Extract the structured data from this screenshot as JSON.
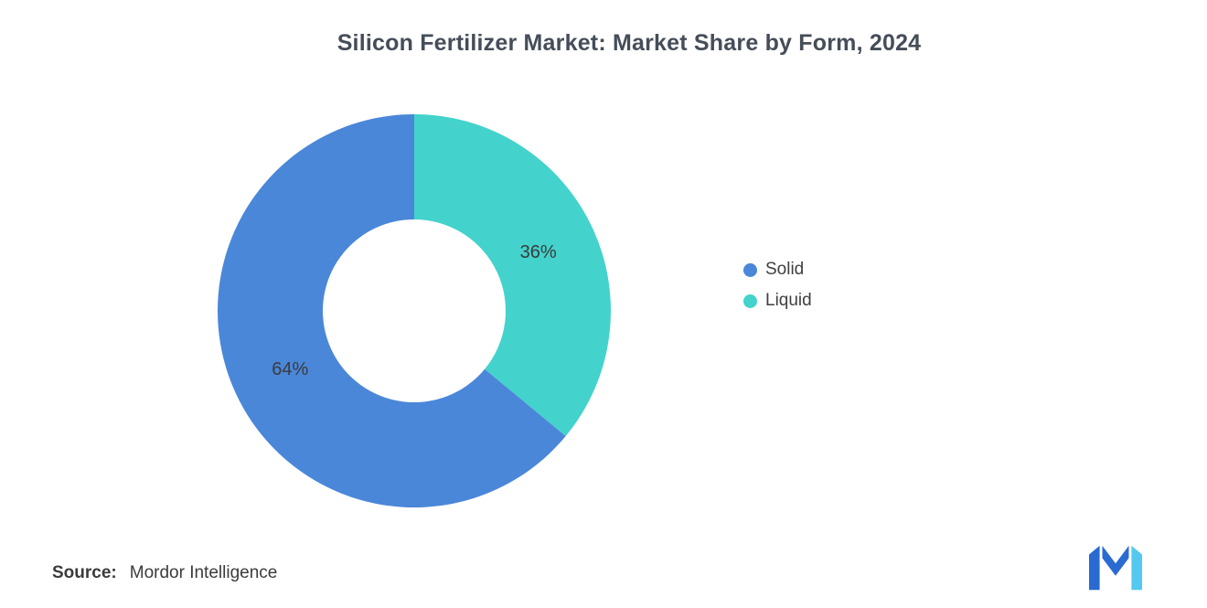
{
  "header": {
    "title": "Silicon Fertilizer Market: Market Share by Form, 2024"
  },
  "chart_data": {
    "type": "pie",
    "subtype": "donut",
    "title": "Silicon Fertilizer Market: Market Share by Form, 2024",
    "unit": "%",
    "start_angle_deg": -90,
    "direction": "clockwise",
    "legend_position": "right",
    "segments": [
      {
        "label": "Solid",
        "value": 64,
        "color": "#4a87d8",
        "data_label": "64%"
      },
      {
        "label": "Liquid",
        "value": 36,
        "color": "#43d2cc",
        "data_label": "36%"
      }
    ]
  },
  "source": {
    "label": "Source:",
    "value": "Mordor Intelligence"
  },
  "logo": {
    "name": "Mordor Intelligence",
    "colors": {
      "dark_blue": "#2a6bd2",
      "light_blue": "#54c8f0"
    }
  }
}
